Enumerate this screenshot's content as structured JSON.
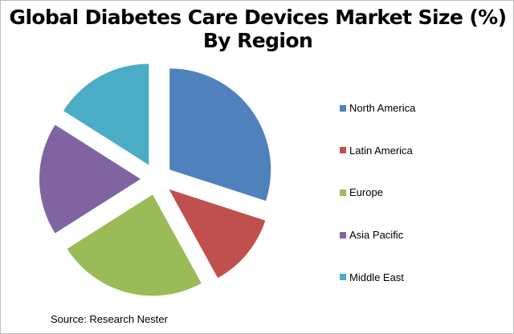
{
  "chart_data": {
    "type": "pie",
    "title": "Global Diabetes Care Devices Market Size (%) By Region",
    "categories": [
      "North America",
      "Latin America",
      "Europe",
      "Asia Pacific",
      "Middle East"
    ],
    "values": [
      30,
      12,
      24,
      18,
      16
    ],
    "colors": [
      "#4F81BD",
      "#C0504D",
      "#9BBB59",
      "#8064A2",
      "#4BACC6"
    ],
    "exploded": true,
    "legend_position": "right"
  },
  "source": "Source: Research Nester"
}
